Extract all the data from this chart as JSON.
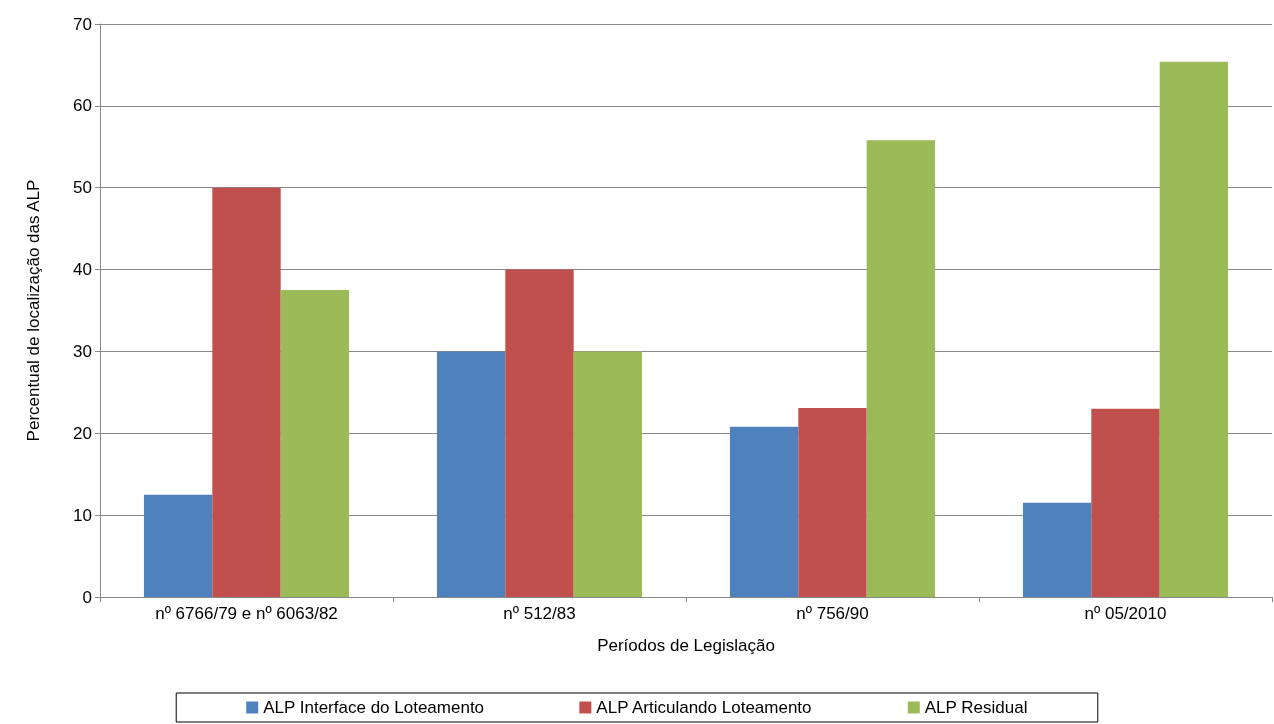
{
  "chart_data": {
    "type": "bar",
    "xlabel": "Períodos de Legislação",
    "ylabel": "Percentual de localização das ALP",
    "categories": [
      "nº 6766/79 e nº 6063/82",
      "nº 512/83",
      "nº 756/90",
      "nº 05/2010"
    ],
    "series": [
      {
        "name": "ALP Interface do Loteamento",
        "color": "#4f81bd",
        "values": [
          12.5,
          30,
          20.8,
          11.5
        ]
      },
      {
        "name": "ALP Articulando Loteamento",
        "color": "#c0504d",
        "values": [
          50,
          40,
          23.1,
          23
        ]
      },
      {
        "name": "ALP Residual",
        "color": "#9bbb59",
        "values": [
          37.5,
          30,
          55.8,
          65.4
        ]
      }
    ],
    "ylim": [
      0,
      70
    ],
    "yticks": [
      0,
      10,
      20,
      30,
      40,
      50,
      60,
      70
    ],
    "grid": "y",
    "legend": "bottom"
  }
}
